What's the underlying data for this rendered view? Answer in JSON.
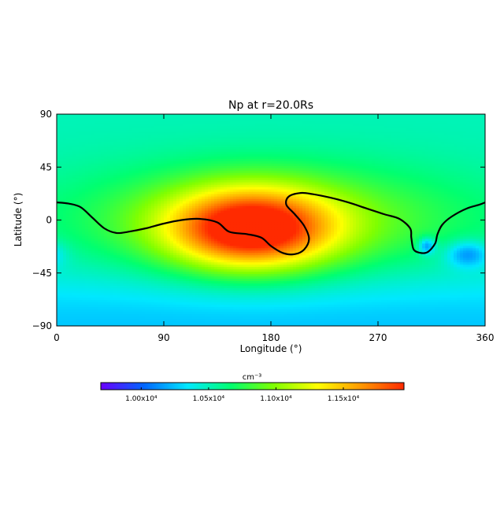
{
  "chart_data": {
    "type": "heatmap",
    "title": "Np at r=20.0Rs",
    "xlabel": "Longitude (°)",
    "ylabel": "Latitude (°)",
    "xlim": [
      0,
      360
    ],
    "ylim": [
      -90,
      90
    ],
    "xticks": [
      "0",
      "90",
      "180",
      "270",
      "360"
    ],
    "yticks": [
      "90",
      "45",
      "0",
      "−45",
      "−90"
    ],
    "grid": false,
    "colorbar": {
      "unit": "cm⁻³",
      "range": [
        9700,
        11950
      ],
      "ticks": [
        {
          "value": 10000,
          "label": "1.00x10⁴"
        },
        {
          "value": 10500,
          "label": "1.05x10⁴"
        },
        {
          "value": 11000,
          "label": "1.10x10⁴"
        },
        {
          "value": 11500,
          "label": "1.15x10⁴"
        }
      ],
      "colors": [
        "#6a00ff",
        "#0066ff",
        "#00e8ff",
        "#00ff70",
        "#80ff00",
        "#ffff00",
        "#ff9900",
        "#ff2a00"
      ]
    },
    "field": {
      "background": 10500,
      "features": [
        {
          "name": "central maximum",
          "lon": 163,
          "lat": -8,
          "amplitude": 1350,
          "sigma_lon": 48,
          "sigma_lat": 24
        },
        {
          "name": "equatorial enhancement",
          "lon": 180,
          "lat": 0,
          "amplitude": 500,
          "sigma_lon": 120,
          "sigma_lat": 32
        },
        {
          "name": "high-latitude depletion",
          "lon": 180,
          "lat": -90,
          "amplitude": -250,
          "sigma_lon": 600,
          "sigma_lat": 35
        },
        {
          "name": "minimum near 310",
          "lon": 311,
          "lat": -22,
          "amplitude": -500,
          "sigma_lon": 5,
          "sigma_lat": 5
        },
        {
          "name": "minimum near 345",
          "lon": 345,
          "lat": -29,
          "amplitude": -420,
          "sigma_lon": 13,
          "sigma_lat": 8
        }
      ]
    },
    "contour": [
      [
        0,
        15
      ],
      [
        10,
        14
      ],
      [
        20,
        11
      ],
      [
        30,
        2
      ],
      [
        40,
        -7
      ],
      [
        50,
        -11
      ],
      [
        60,
        -10
      ],
      [
        75,
        -7
      ],
      [
        90,
        -3
      ],
      [
        105,
        0
      ],
      [
        120,
        1
      ],
      [
        135,
        -2
      ],
      [
        145,
        -10
      ],
      [
        160,
        -12
      ],
      [
        172,
        -15
      ],
      [
        180,
        -22
      ],
      [
        190,
        -28
      ],
      [
        200,
        -29
      ],
      [
        208,
        -25
      ],
      [
        212,
        -16
      ],
      [
        208,
        -5
      ],
      [
        200,
        5
      ],
      [
        193,
        13
      ],
      [
        195,
        20
      ],
      [
        205,
        23
      ],
      [
        215,
        22
      ],
      [
        230,
        19
      ],
      [
        245,
        15
      ],
      [
        260,
        10
      ],
      [
        275,
        5
      ],
      [
        288,
        1
      ],
      [
        297,
        -7
      ],
      [
        298,
        -15
      ],
      [
        300,
        -25
      ],
      [
        306,
        -28
      ],
      [
        312,
        -27
      ],
      [
        318,
        -20
      ],
      [
        320,
        -12
      ],
      [
        324,
        -4
      ],
      [
        332,
        3
      ],
      [
        345,
        10
      ],
      [
        355,
        13
      ],
      [
        360,
        15
      ]
    ]
  }
}
